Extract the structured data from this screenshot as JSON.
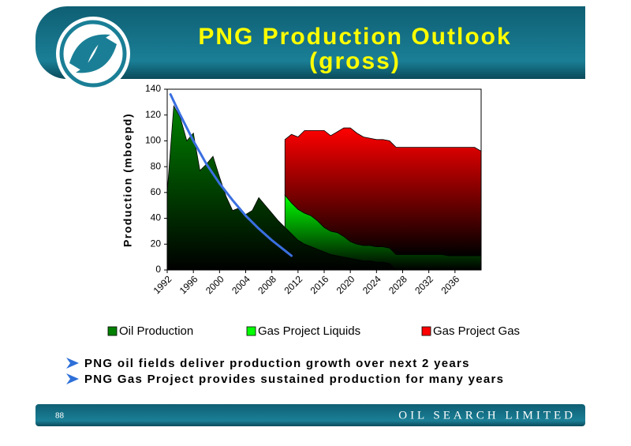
{
  "header": {
    "title_lines": [
      "PNG Production Outlook",
      "(gross)"
    ]
  },
  "chart_data": {
    "type": "stacked_area",
    "ylabel": "Production (mboepd)",
    "x": [
      1992,
      1993,
      1994,
      1995,
      1996,
      1997,
      1998,
      1999,
      2000,
      2001,
      2002,
      2003,
      2004,
      2005,
      2006,
      2007,
      2008,
      2009,
      2010,
      2011,
      2012,
      2013,
      2014,
      2015,
      2016,
      2017,
      2018,
      2019,
      2020,
      2021,
      2022,
      2023,
      2024,
      2025,
      2026,
      2027,
      2028,
      2029,
      2030,
      2031,
      2032,
      2033,
      2034,
      2035,
      2036,
      2037,
      2038,
      2039,
      2040
    ],
    "series": [
      {
        "name": "Oil Production",
        "color": "#008000",
        "values": [
          60,
          127,
          118,
          100,
          106,
          77,
          82,
          88,
          72,
          57,
          46,
          48,
          43,
          46,
          56,
          50,
          44,
          38,
          33,
          28,
          23,
          20,
          18,
          16,
          14,
          12,
          11,
          10,
          9,
          8,
          7,
          7,
          6,
          6,
          5,
          0,
          0,
          0,
          0,
          0,
          0,
          0,
          0,
          0,
          0,
          0,
          0,
          0,
          0
        ]
      },
      {
        "name": "Gas Project Liquids",
        "color": "#00ff00",
        "values": [
          null,
          null,
          null,
          null,
          null,
          null,
          null,
          null,
          null,
          null,
          null,
          null,
          null,
          null,
          null,
          null,
          null,
          null,
          25,
          24,
          24,
          24,
          24,
          22,
          19,
          18,
          18,
          16,
          13,
          12,
          12,
          12,
          12,
          12,
          12,
          12,
          12,
          12,
          12,
          12,
          12,
          12,
          12,
          11,
          11,
          11,
          11,
          11,
          11
        ]
      },
      {
        "name": "Gas Project Gas",
        "color": "#ff0000",
        "values": [
          null,
          null,
          null,
          null,
          null,
          null,
          null,
          null,
          null,
          null,
          null,
          null,
          null,
          null,
          null,
          null,
          null,
          null,
          43,
          53,
          56,
          64,
          66,
          70,
          75,
          74,
          78,
          84,
          88,
          86,
          84,
          83,
          83,
          83,
          83,
          83,
          83,
          83,
          83,
          83,
          83,
          83,
          83,
          84,
          84,
          84,
          84,
          84,
          81
        ]
      }
    ],
    "curve": {
      "color": "#3a6fe0",
      "x": [
        1992.5,
        1994,
        1996,
        1998,
        2000,
        2002,
        2004,
        2006,
        2008,
        2010,
        2011
      ],
      "values": [
        136,
        120,
        100,
        82,
        67,
        54,
        42,
        32,
        23,
        15,
        11
      ]
    },
    "xlim": [
      1992,
      2040
    ],
    "xticks": [
      1992,
      1996,
      2000,
      2004,
      2008,
      2012,
      2016,
      2020,
      2024,
      2028,
      2032,
      2036
    ],
    "ylim": [
      0,
      140
    ],
    "yticks": [
      0,
      20,
      40,
      60,
      80,
      100,
      120,
      140
    ],
    "grid": false,
    "legend": "bottom"
  },
  "bullets": [
    "PNG oil fields deliver production growth over next 2 years",
    "PNG Gas Project provides sustained production for many years"
  ],
  "footer": {
    "page": "88",
    "company": "OIL SEARCH LIMITED"
  }
}
